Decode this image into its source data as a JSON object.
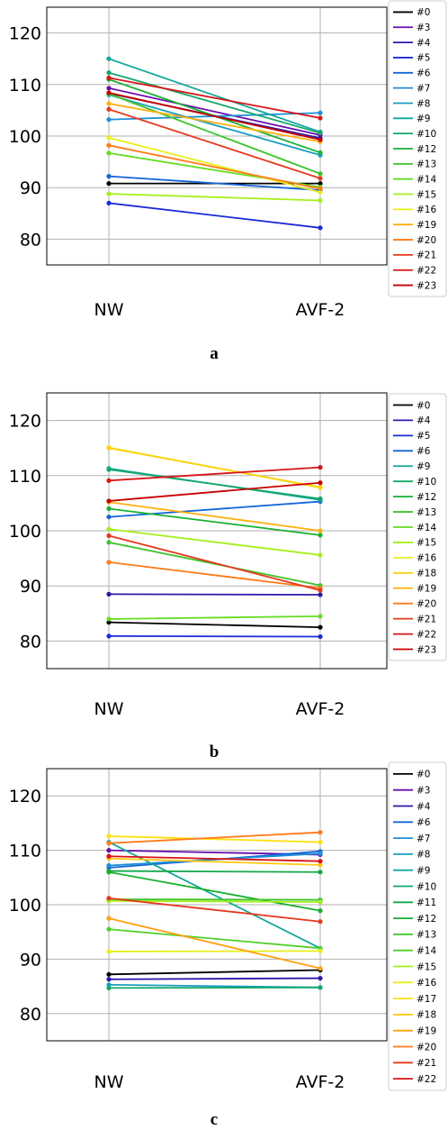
{
  "chart_data": [
    {
      "type": "line",
      "caption": "a",
      "categories": [
        "NW",
        "AVF-2"
      ],
      "ylim": [
        75,
        125
      ],
      "yticks": [
        80,
        90,
        100,
        110,
        120
      ],
      "grid": true,
      "legend_position": "right",
      "series": [
        {
          "name": "#0",
          "color": "#000000",
          "values": [
            90.8,
            90.8
          ]
        },
        {
          "name": "#3",
          "color": "#6a0dad",
          "values": [
            109.3,
            100.2
          ]
        },
        {
          "name": "#4",
          "color": "#2a1aa8",
          "values": [
            108.3,
            99.6
          ]
        },
        {
          "name": "#5",
          "color": "#1a2bd8",
          "values": [
            87.0,
            82.2
          ]
        },
        {
          "name": "#6",
          "color": "#1565d8",
          "values": [
            92.2,
            89.5
          ]
        },
        {
          "name": "#7",
          "color": "#1e90d6",
          "values": [
            103.2,
            104.5
          ]
        },
        {
          "name": "#8",
          "color": "#1a9ec0",
          "values": [
            108.0,
            96.3
          ]
        },
        {
          "name": "#9",
          "color": "#12a89a",
          "values": [
            115.0,
            100.8
          ]
        },
        {
          "name": "#10",
          "color": "#14a86a",
          "values": [
            112.3,
            100.6
          ]
        },
        {
          "name": "#12",
          "color": "#18b030",
          "values": [
            111.0,
            96.8
          ]
        },
        {
          "name": "#13",
          "color": "#3ec42a",
          "values": [
            108.2,
            92.7
          ]
        },
        {
          "name": "#14",
          "color": "#66dd22",
          "values": [
            96.7,
            90.1
          ]
        },
        {
          "name": "#15",
          "color": "#a6ef1a",
          "values": [
            88.8,
            87.5
          ]
        },
        {
          "name": "#16",
          "color": "#e8ee1a",
          "values": [
            99.7,
            89.1
          ]
        },
        {
          "name": "#19",
          "color": "#ffb010",
          "values": [
            106.3,
            98.9
          ]
        },
        {
          "name": "#20",
          "color": "#ff7a18",
          "values": [
            98.2,
            89.8
          ]
        },
        {
          "name": "#21",
          "color": "#e6391c",
          "values": [
            105.2,
            91.8
          ]
        },
        {
          "name": "#22",
          "color": "#d81414",
          "values": [
            111.3,
            103.5
          ]
        },
        {
          "name": "#23",
          "color": "#c80000",
          "values": [
            108.4,
            99.3
          ]
        }
      ]
    },
    {
      "type": "line",
      "caption": "b",
      "categories": [
        "NW",
        "AVF-2"
      ],
      "ylim": [
        75,
        125
      ],
      "yticks": [
        80,
        90,
        100,
        110,
        120
      ],
      "grid": true,
      "legend_position": "right",
      "series": [
        {
          "name": "#0",
          "color": "#000000",
          "values": [
            83.4,
            82.5
          ]
        },
        {
          "name": "#4",
          "color": "#2a1aa8",
          "values": [
            88.5,
            88.4
          ]
        },
        {
          "name": "#5",
          "color": "#1a2bd8",
          "values": [
            80.9,
            80.8
          ]
        },
        {
          "name": "#6",
          "color": "#1565d8",
          "values": [
            102.5,
            105.3
          ]
        },
        {
          "name": "#9",
          "color": "#12a89a",
          "values": [
            111.3,
            105.6
          ]
        },
        {
          "name": "#10",
          "color": "#14a86a",
          "values": [
            111.1,
            105.8
          ]
        },
        {
          "name": "#12",
          "color": "#18b030",
          "values": [
            104.0,
            99.2
          ]
        },
        {
          "name": "#13",
          "color": "#3ec42a",
          "values": [
            97.9,
            90.1
          ]
        },
        {
          "name": "#14",
          "color": "#66dd22",
          "values": [
            84.0,
            84.5
          ]
        },
        {
          "name": "#15",
          "color": "#a6ef1a",
          "values": [
            100.3,
            95.6
          ]
        },
        {
          "name": "#16",
          "color": "#e8ee1a",
          "values": [
            115.1,
            107.8
          ]
        },
        {
          "name": "#18",
          "color": "#ffd010",
          "values": [
            115.0,
            107.9
          ]
        },
        {
          "name": "#19",
          "color": "#ffb010",
          "values": [
            105.2,
            100.0
          ]
        },
        {
          "name": "#20",
          "color": "#ff7a18",
          "values": [
            94.3,
            89.6
          ]
        },
        {
          "name": "#21",
          "color": "#e6391c",
          "values": [
            99.1,
            89.2
          ]
        },
        {
          "name": "#22",
          "color": "#d81414",
          "values": [
            109.1,
            111.5
          ]
        },
        {
          "name": "#23",
          "color": "#c80000",
          "values": [
            105.4,
            108.7
          ]
        }
      ]
    },
    {
      "type": "line",
      "caption": "c",
      "categories": [
        "NW",
        "AVF-2"
      ],
      "ylim": [
        75,
        125
      ],
      "yticks": [
        80,
        90,
        100,
        110,
        120
      ],
      "grid": true,
      "legend_position": "right",
      "series": [
        {
          "name": "#0",
          "color": "#000000",
          "values": [
            87.2,
            88.0
          ]
        },
        {
          "name": "#3",
          "color": "#6a0dad",
          "values": [
            110.0,
            109.2
          ]
        },
        {
          "name": "#4",
          "color": "#2a1aa8",
          "values": [
            86.3,
            86.5
          ]
        },
        {
          "name": "#6",
          "color": "#1565d8",
          "values": [
            106.8,
            109.8
          ]
        },
        {
          "name": "#7",
          "color": "#1e90d6",
          "values": [
            107.2,
            109.4
          ]
        },
        {
          "name": "#8",
          "color": "#1a9ec0",
          "values": [
            85.3,
            84.8
          ]
        },
        {
          "name": "#9",
          "color": "#12a89a",
          "values": [
            111.5,
            92.0
          ]
        },
        {
          "name": "#10",
          "color": "#14a86a",
          "values": [
            84.7,
            84.8
          ]
        },
        {
          "name": "#11",
          "color": "#14a84a",
          "values": [
            106.2,
            106.0
          ]
        },
        {
          "name": "#12",
          "color": "#18b030",
          "values": [
            106.0,
            98.9
          ]
        },
        {
          "name": "#13",
          "color": "#3ec42a",
          "values": [
            101.0,
            100.9
          ]
        },
        {
          "name": "#14",
          "color": "#4fd02a",
          "values": [
            95.5,
            92.0
          ]
        },
        {
          "name": "#15",
          "color": "#a6ef1a",
          "values": [
            100.7,
            100.5
          ]
        },
        {
          "name": "#16",
          "color": "#e8ee1a",
          "values": [
            91.4,
            91.5
          ]
        },
        {
          "name": "#17",
          "color": "#ffe010",
          "values": [
            112.6,
            111.5
          ]
        },
        {
          "name": "#18",
          "color": "#ffc810",
          "values": [
            108.5,
            107.3
          ]
        },
        {
          "name": "#19",
          "color": "#ffa010",
          "values": [
            97.5,
            88.3
          ]
        },
        {
          "name": "#20",
          "color": "#ff7a18",
          "values": [
            111.3,
            113.3
          ]
        },
        {
          "name": "#21",
          "color": "#e6391c",
          "values": [
            101.2,
            96.9
          ]
        },
        {
          "name": "#22",
          "color": "#d81414",
          "values": [
            108.9,
            108.0
          ]
        }
      ]
    }
  ]
}
